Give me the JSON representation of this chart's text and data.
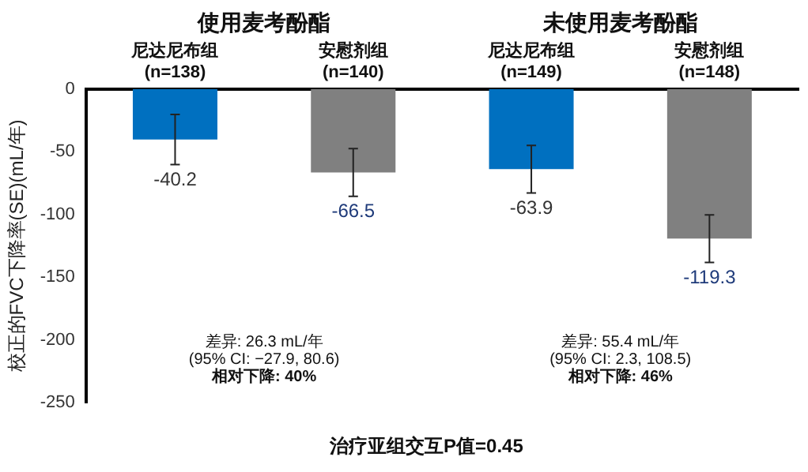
{
  "chart_data": {
    "type": "bar",
    "ylabel": "校正的FVC下降率(SE)(mL/年)",
    "categories": [
      "尼达尼布组\n(n=138)",
      "安慰剂组\n(n=140)",
      "尼达尼布组\n(n=149)",
      "安慰剂组\n(n=148)"
    ],
    "values": [
      -40.2,
      -66.5,
      -63.9,
      -119.3
    ],
    "colors": [
      "#0070c0",
      "#808080",
      "#0070c0",
      "#808080"
    ],
    "errors": [
      20,
      19,
      19,
      19
    ],
    "data_labels": true,
    "ylim": [
      -250,
      0
    ],
    "yticks": [
      0,
      -50,
      -100,
      -150,
      -200,
      -250
    ],
    "grid": false,
    "legend": false,
    "annotations": [
      "使用麦考酚酯",
      "未使用麦考酚酯",
      "差异: 26.3 mL/年\n(95% CI: −27.9, 80.6)\n相对下降: 40%",
      "差异: 55.4 mL/年\n(95% CI: 2.3, 108.5)\n相对下降: 46%",
      "治疗亚组交互P值=0.45"
    ]
  }
}
